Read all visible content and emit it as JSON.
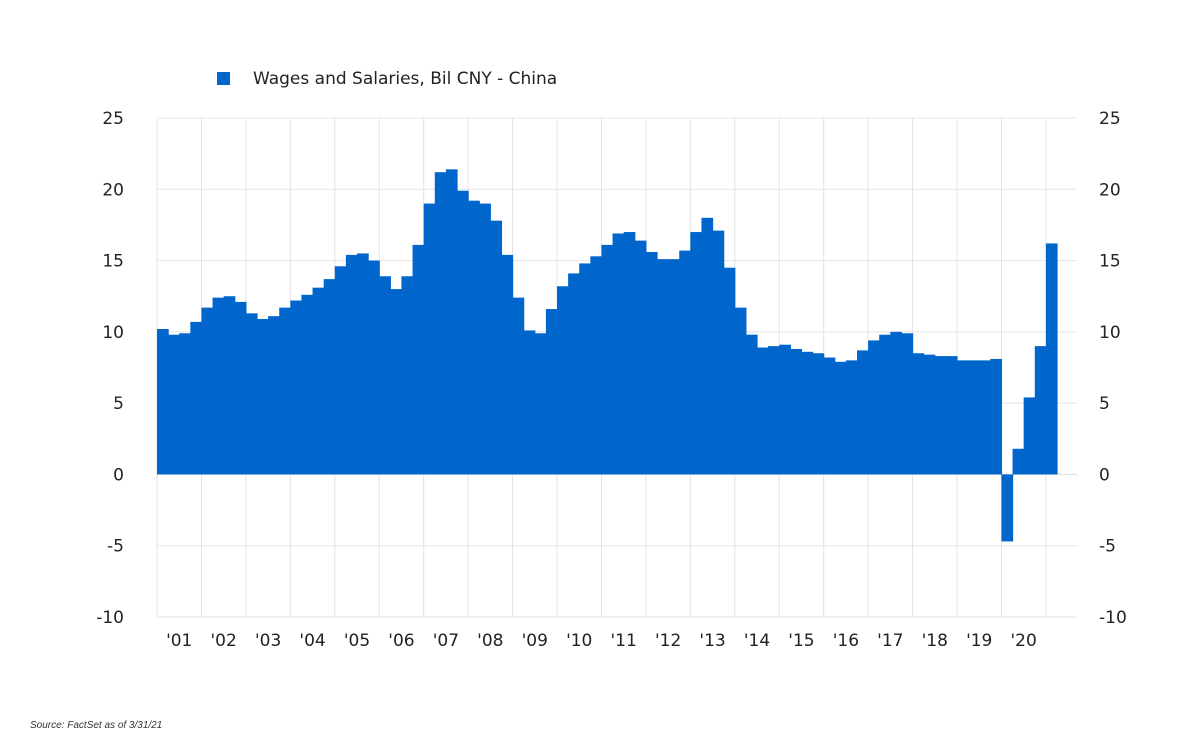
{
  "chart_data": {
    "type": "area",
    "style": "step",
    "colors": {
      "series": "#0066CC",
      "grid": "#e3e3e3",
      "zero_line": "#dcdcdc"
    },
    "legend": {
      "position": "top-left",
      "label": "Wages and Salaries, Bil CNY - China"
    },
    "grid": {
      "x": true,
      "y": true
    },
    "ylim": [
      -10,
      25
    ],
    "yticks": [
      "25",
      "20",
      "15",
      "10",
      "5",
      "0",
      "-5",
      "-10"
    ],
    "yticks_values": [
      25,
      20,
      15,
      10,
      5,
      0,
      -5,
      -10
    ],
    "y_axis_sides": [
      "left",
      "right"
    ],
    "x_start": 2001.0,
    "x_end": 2021.25,
    "xticks": [
      "'01",
      "'02",
      "'03",
      "'04",
      "'05",
      "'06",
      "'07",
      "'08",
      "'09",
      "'10",
      "'11",
      "'12",
      "'13",
      "'14",
      "'15",
      "'16",
      "'17",
      "'18",
      "'19",
      "'20"
    ],
    "xticks_years": [
      2001,
      2002,
      2003,
      2004,
      2005,
      2006,
      2007,
      2008,
      2009,
      2010,
      2011,
      2012,
      2013,
      2014,
      2015,
      2016,
      2017,
      2018,
      2019,
      2020
    ],
    "series": [
      {
        "name": "Wages and Salaries, Bil CNY - China",
        "quarter_step": 0.25,
        "values": [
          10.2,
          9.8,
          9.9,
          10.7,
          11.7,
          12.4,
          12.5,
          12.1,
          11.3,
          10.9,
          11.1,
          11.7,
          12.2,
          12.6,
          13.1,
          13.7,
          14.6,
          15.4,
          15.5,
          15.0,
          13.9,
          13.0,
          13.9,
          16.1,
          19.0,
          21.2,
          21.4,
          19.9,
          19.2,
          19.0,
          17.8,
          15.4,
          12.4,
          10.1,
          9.9,
          11.6,
          13.2,
          14.1,
          14.8,
          15.3,
          16.1,
          16.9,
          17.0,
          16.4,
          15.6,
          15.1,
          15.1,
          15.7,
          17.0,
          18.0,
          17.1,
          14.5,
          11.7,
          9.8,
          8.9,
          9.0,
          9.1,
          8.8,
          8.6,
          8.5,
          8.2,
          7.9,
          8.0,
          8.7,
          9.4,
          9.8,
          10.0,
          9.9,
          8.5,
          8.4,
          8.3,
          8.3,
          8.0,
          8.0,
          8.0,
          8.1,
          -4.7,
          1.8,
          5.4,
          9.0,
          16.2
        ]
      }
    ]
  },
  "source_note": "Source: FactSet as of 3/31/21"
}
